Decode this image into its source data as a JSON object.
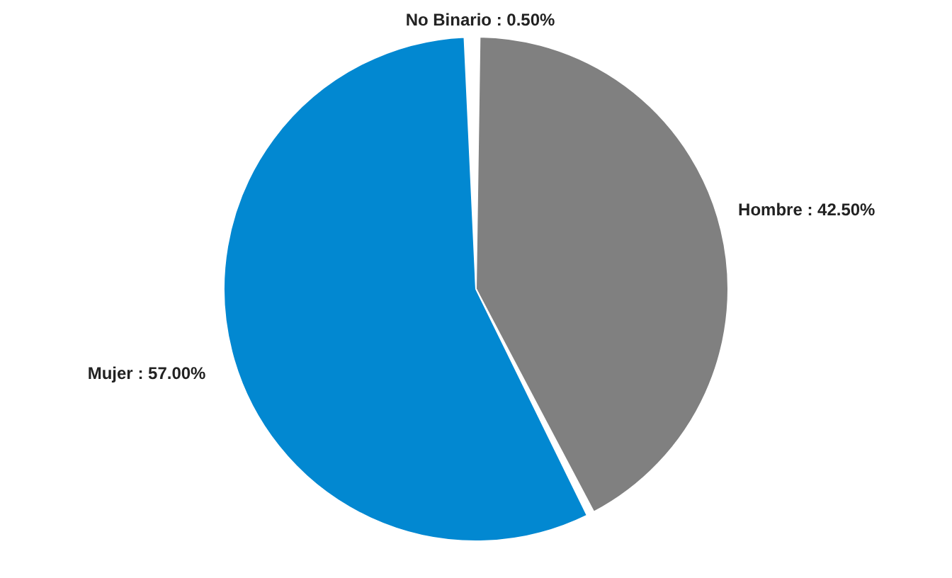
{
  "chart_data": {
    "type": "pie",
    "categories": [
      "Hombre",
      "Mujer",
      "No Binario"
    ],
    "values": [
      42.5,
      57,
      0.5
    ],
    "value_labels": [
      "42.50%",
      "57.00%",
      "0.50%"
    ],
    "colors": [
      "#808080",
      "#0288d1",
      "#555555"
    ]
  }
}
